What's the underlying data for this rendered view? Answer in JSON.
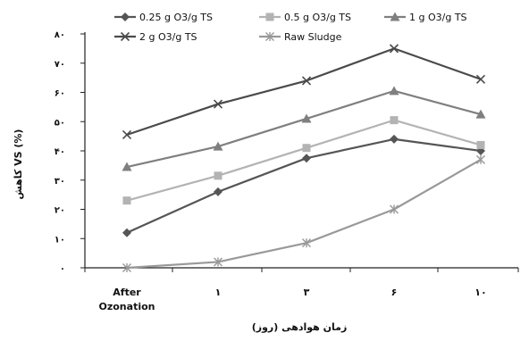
{
  "chart_data": {
    "type": "line",
    "title": "",
    "xlabel": "زمان هوادهی (روز)",
    "ylabel": "کاهش VS (%)",
    "categories": [
      "After Ozonation",
      "۱",
      "۳",
      "۶",
      "۱۰"
    ],
    "category_lines": [
      [
        "After",
        "Ozonation"
      ],
      [
        "۱"
      ],
      [
        "۳"
      ],
      [
        "۶"
      ],
      [
        "۱۰"
      ]
    ],
    "ylim": [
      0,
      80
    ],
    "yticks": [
      0,
      10,
      20,
      30,
      40,
      50,
      60,
      70,
      80
    ],
    "ytick_labels": [
      "۰",
      "۱۰",
      "۲۰",
      "۳۰",
      "۴۰",
      "۵۰",
      "۶۰",
      "۷۰",
      "۸۰"
    ],
    "grid": false,
    "legend_position": "top",
    "series": [
      {
        "name": "0.25 g O3/g TS",
        "marker": "diamond",
        "color": "#555555",
        "values": [
          12,
          26,
          37.5,
          44,
          40
        ]
      },
      {
        "name": "0.5 g O3/g TS",
        "marker": "square",
        "color": "#b3b3b3",
        "values": [
          23,
          31.5,
          41,
          50.5,
          42
        ]
      },
      {
        "name": "1 g O3/g TS",
        "marker": "triangle",
        "color": "#7f7f7f",
        "values": [
          34.5,
          41.5,
          51,
          60.5,
          52.5
        ]
      },
      {
        "name": "2 g O3/g TS",
        "marker": "x",
        "color": "#4a4a4a",
        "values": [
          45.5,
          56,
          64,
          75,
          64.5
        ]
      },
      {
        "name": "Raw Sludge",
        "marker": "star",
        "color": "#999999",
        "values": [
          0,
          2,
          8.5,
          20,
          37
        ]
      }
    ]
  }
}
